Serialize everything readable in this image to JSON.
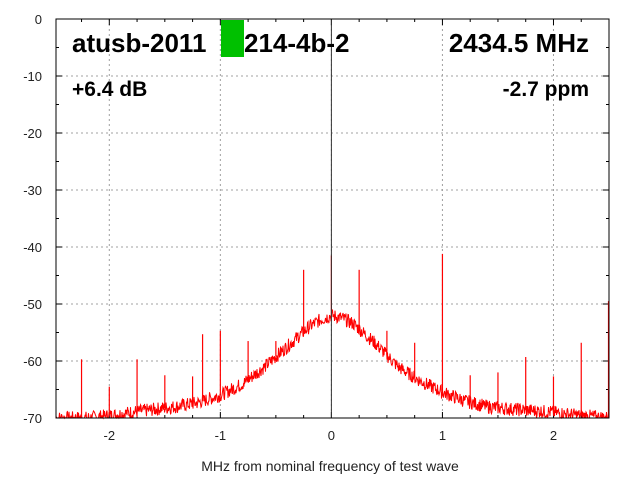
{
  "chart_data": {
    "type": "line",
    "title": "",
    "xlabel": "MHz from nominal frequency of test wave",
    "ylabel": "",
    "xlim": [
      -2.48,
      2.5
    ],
    "ylim": [
      -70,
      0
    ],
    "xticks": [
      "-2",
      "-1",
      "0",
      "1",
      "2"
    ],
    "xtick_values": [
      -2,
      -1,
      0,
      1,
      2
    ],
    "yticks": [
      "0",
      "-10",
      "-20",
      "-30",
      "-40",
      "-50",
      "-60",
      "-70"
    ],
    "ytick_values": [
      0,
      -10,
      -20,
      -30,
      -40,
      -50,
      -60,
      -70
    ],
    "grid": true,
    "series_color": "#ff0000",
    "carrier_color": "#333333",
    "redaction_color": "#00c000",
    "noise_floor": {
      "x": [
        -2.48,
        -2.2,
        -2.0,
        -1.8,
        -1.6,
        -1.4,
        -1.2,
        -1.0,
        -0.8,
        -0.6,
        -0.4,
        -0.2,
        -0.1,
        0.0,
        0.1,
        0.2,
        0.4,
        0.6,
        0.8,
        1.0,
        1.2,
        1.4,
        1.6,
        1.8,
        2.0,
        2.2,
        2.5
      ],
      "y": [
        -70,
        -70,
        -69.6,
        -69,
        -68.5,
        -68,
        -67.3,
        -66,
        -64,
        -61,
        -57.5,
        -54,
        -52.8,
        -52,
        -52.5,
        -53.5,
        -57,
        -61,
        -63.5,
        -65.5,
        -67,
        -68,
        -68.4,
        -68.7,
        -69,
        -69.5,
        -70
      ]
    },
    "spurs": [
      {
        "x": -2.25,
        "y": -59.7
      },
      {
        "x": -2.0,
        "y": -64.5
      },
      {
        "x": -1.75,
        "y": -59.7
      },
      {
        "x": -1.5,
        "y": -62.5
      },
      {
        "x": -1.25,
        "y": -62.7
      },
      {
        "x": -1.16,
        "y": -55.3
      },
      {
        "x": -1.0,
        "y": -54.7
      },
      {
        "x": -0.75,
        "y": -56.5
      },
      {
        "x": -0.5,
        "y": -56.5
      },
      {
        "x": -0.25,
        "y": -44
      },
      {
        "x": 0.0,
        "y": -41.5
      },
      {
        "x": 0.25,
        "y": -44
      },
      {
        "x": 0.5,
        "y": -54.7
      },
      {
        "x": 0.75,
        "y": -56.8
      },
      {
        "x": 1.0,
        "y": -41.2
      },
      {
        "x": 1.25,
        "y": -62.5
      },
      {
        "x": 1.5,
        "y": -62
      },
      {
        "x": 1.75,
        "y": -59.3
      },
      {
        "x": 2.0,
        "y": -62.7
      },
      {
        "x": 2.25,
        "y": -56.8
      },
      {
        "x": 2.5,
        "y": -49.5
      }
    ],
    "carrier": {
      "x": 0.0,
      "y": 0
    }
  },
  "annotations": {
    "device_prefix": "atusb-2011",
    "device_suffix": "214-4b-2",
    "frequency": "2434.5 MHz",
    "gain": "+6.4 dB",
    "ppm": "-2.7 ppm"
  }
}
